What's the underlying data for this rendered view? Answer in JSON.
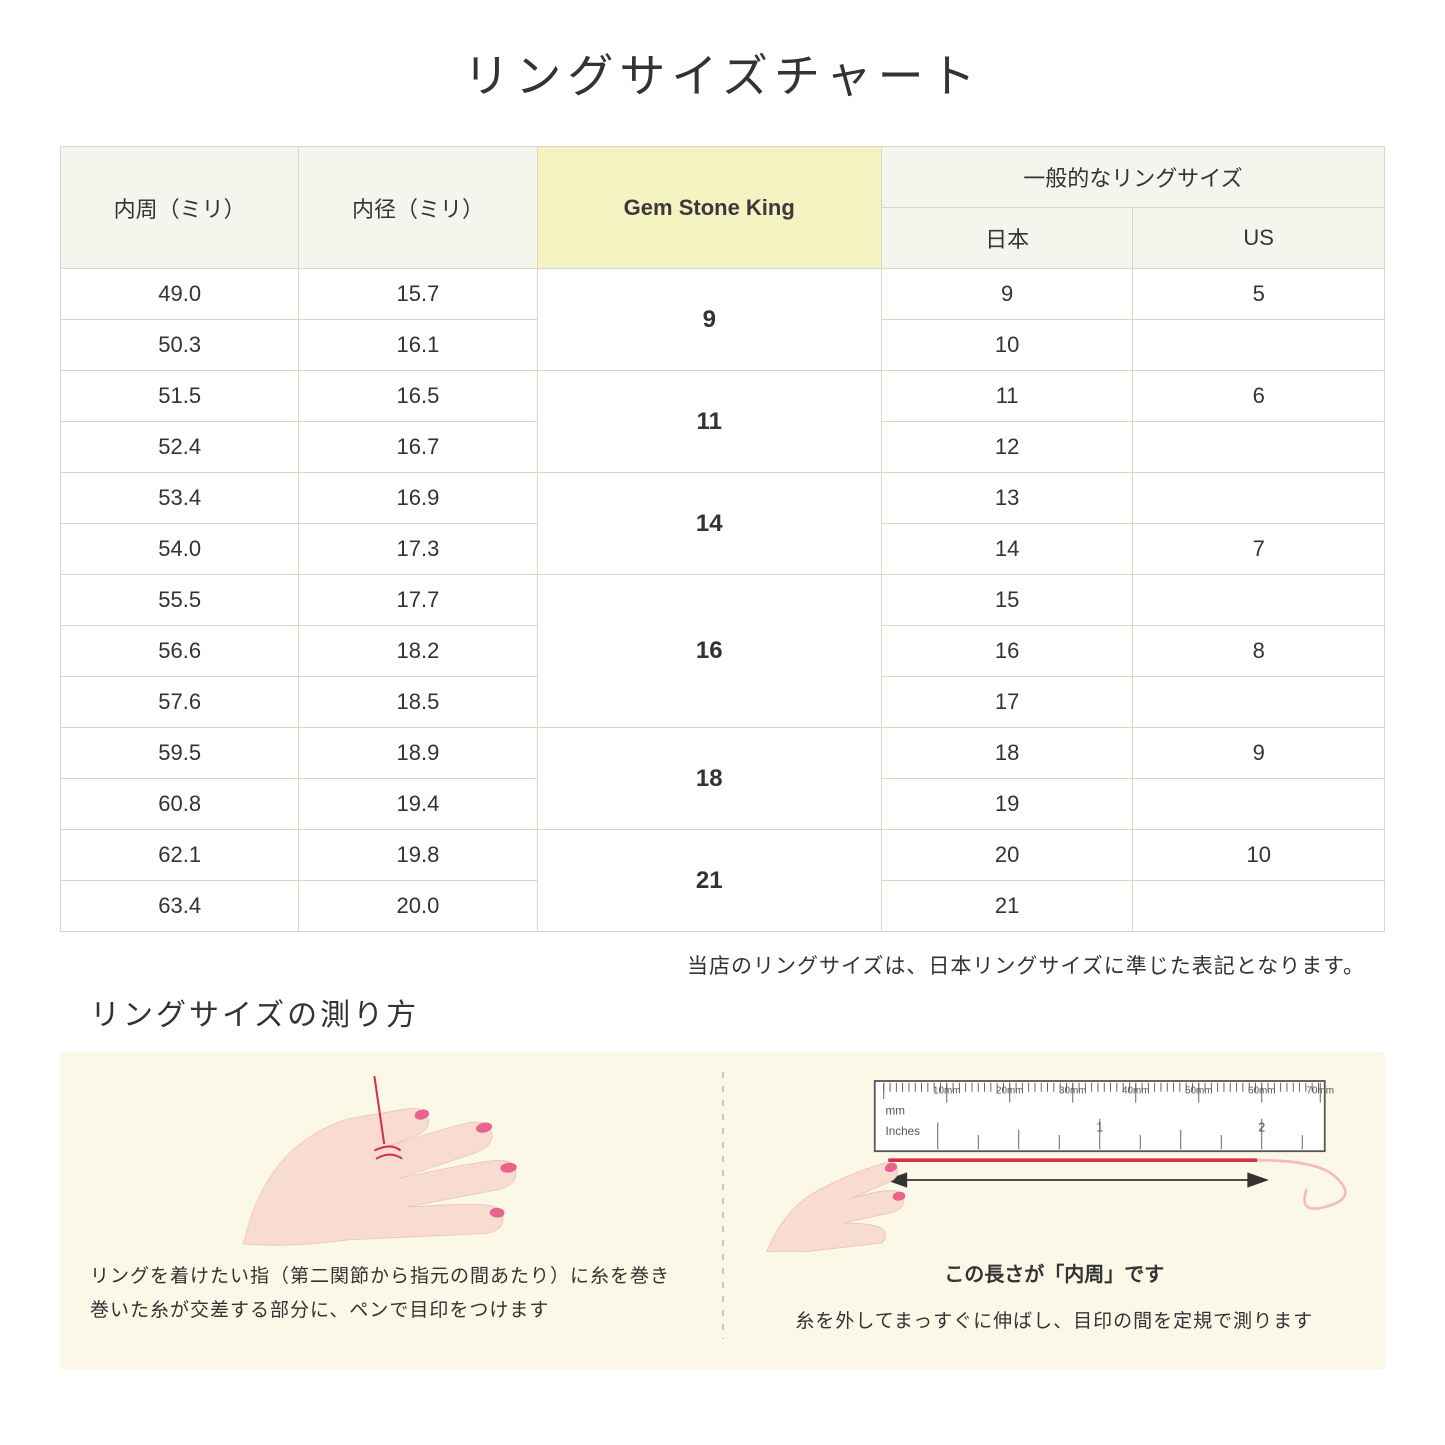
{
  "title": "リングサイズチャート",
  "table": {
    "headers": {
      "col1": "内周（ミリ）",
      "col2": "内径（ミリ）",
      "col3": "Gem Stone King",
      "col4_group": "一般的なリングサイズ",
      "col4a": "日本",
      "col4b": "US"
    },
    "groups": [
      {
        "gsk": "9",
        "rows": [
          {
            "c": "49.0",
            "d": "15.7",
            "jp": "9",
            "us": "5"
          },
          {
            "c": "50.3",
            "d": "16.1",
            "jp": "10",
            "us": ""
          }
        ]
      },
      {
        "gsk": "11",
        "rows": [
          {
            "c": "51.5",
            "d": "16.5",
            "jp": "11",
            "us": "6"
          },
          {
            "c": "52.4",
            "d": "16.7",
            "jp": "12",
            "us": ""
          }
        ]
      },
      {
        "gsk": "14",
        "rows": [
          {
            "c": "53.4",
            "d": "16.9",
            "jp": "13",
            "us": ""
          },
          {
            "c": "54.0",
            "d": "17.3",
            "jp": "14",
            "us": "7"
          }
        ]
      },
      {
        "gsk": "16",
        "rows": [
          {
            "c": "55.5",
            "d": "17.7",
            "jp": "15",
            "us": ""
          },
          {
            "c": "56.6",
            "d": "18.2",
            "jp": "16",
            "us": "8"
          },
          {
            "c": "57.6",
            "d": "18.5",
            "jp": "17",
            "us": ""
          }
        ]
      },
      {
        "gsk": "18",
        "rows": [
          {
            "c": "59.5",
            "d": "18.9",
            "jp": "18",
            "us": "9"
          },
          {
            "c": "60.8",
            "d": "19.4",
            "jp": "19",
            "us": ""
          }
        ]
      },
      {
        "gsk": "21",
        "rows": [
          {
            "c": "62.1",
            "d": "19.8",
            "jp": "20",
            "us": "10"
          },
          {
            "c": "63.4",
            "d": "20.0",
            "jp": "21",
            "us": ""
          }
        ]
      }
    ]
  },
  "note": "当店のリングサイズは、日本リングサイズに準じた表記となります。",
  "howto": {
    "title": "リングサイズの測り方",
    "left_caption": "リングを着けたい指（第二関節から指元の間あたり）に糸を巻き\n巻いた糸が交差する部分に、ペンで目印をつけます",
    "ruler_label": "この長さが「内周」です",
    "right_caption": "糸を外してまっすぐに伸ばし、目印の間を定規で測ります",
    "ruler_mm_labels": [
      "10mm",
      "20mm",
      "30mm",
      "40mm",
      "50mm",
      "60mm",
      "70mm"
    ],
    "ruler_unit_mm": "mm",
    "ruler_unit_in": "Inches",
    "ruler_in_labels": [
      "1",
      "2"
    ]
  },
  "colors": {
    "border": "#d8d8c8",
    "header_bg": "#f5f5ee",
    "gsk_bg": "#f5f3c2",
    "howto_bg": "#fbf8e8",
    "skin": "#f8dccf",
    "skin_shadow": "#edc4b1",
    "nail": "#e8638d",
    "thread": "#d4304a",
    "ruler_bg": "#ffffff",
    "ruler_stroke": "#555555",
    "arrow": "#333333",
    "swirl": "#f3b9c5"
  }
}
